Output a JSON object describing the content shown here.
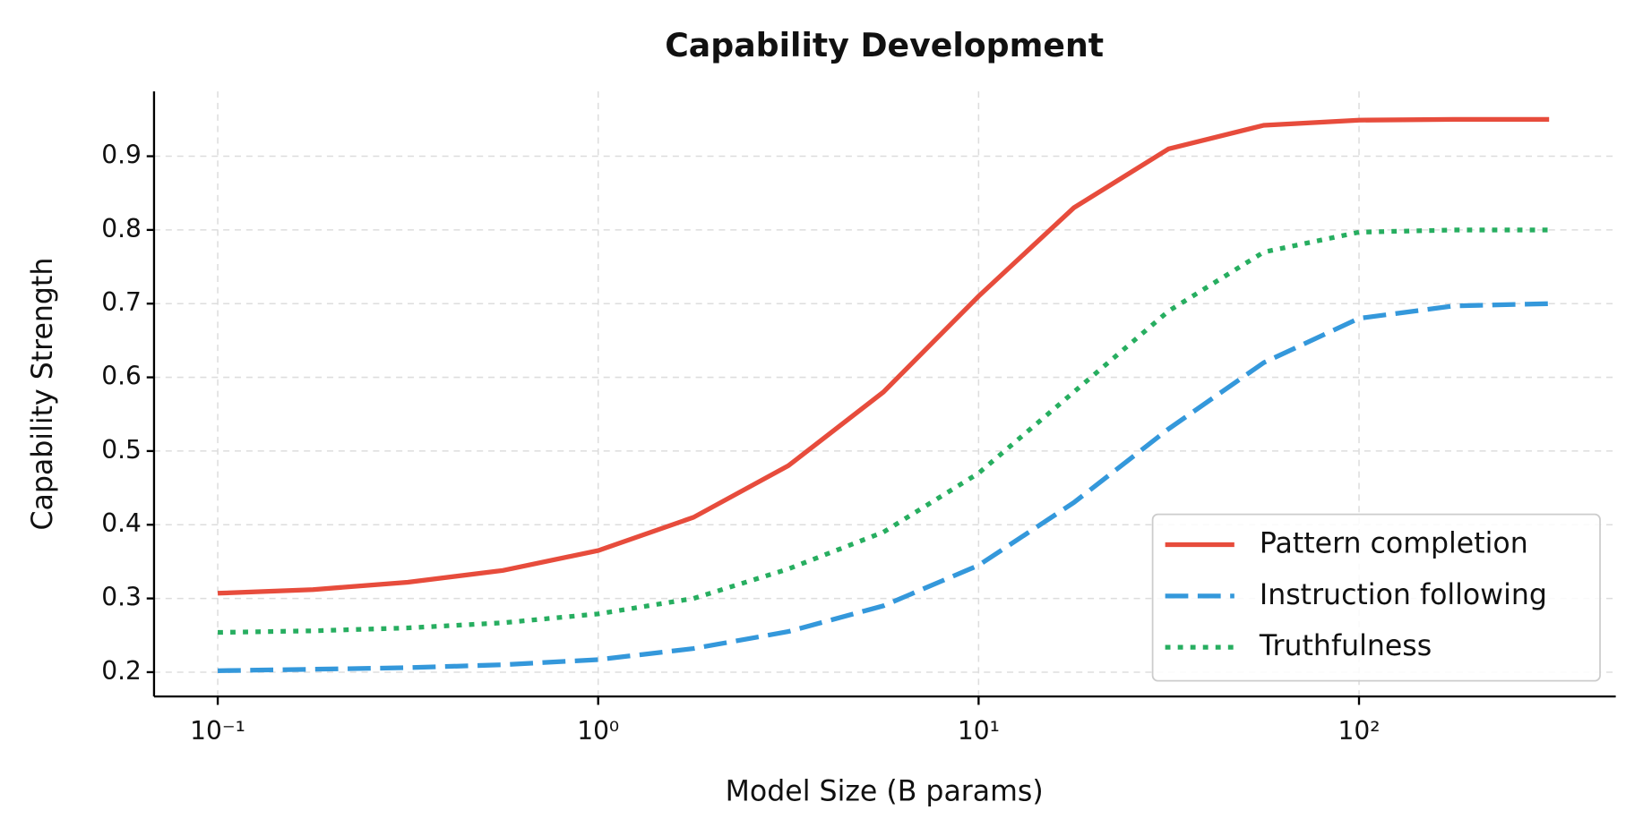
{
  "chart_data": {
    "type": "line",
    "title": "Capability Development",
    "x_label": "Model Size (B params)",
    "y_label": "Capability Strength",
    "x": [
      0.1,
      0.178,
      0.316,
      0.562,
      1,
      1.78,
      3.16,
      5.62,
      10,
      17.8,
      31.6,
      56.2,
      100,
      178,
      316
    ],
    "series": [
      {
        "name": "Pattern completion",
        "color": "#e74c3c",
        "style": "solid",
        "values": [
          0.307,
          0.312,
          0.322,
          0.338,
          0.365,
          0.41,
          0.48,
          0.58,
          0.71,
          0.83,
          0.91,
          0.942,
          0.949,
          0.95,
          0.95
        ]
      },
      {
        "name": "Instruction following",
        "color": "#3498db",
        "style": "dashed",
        "values": [
          0.202,
          0.204,
          0.206,
          0.21,
          0.217,
          0.232,
          0.255,
          0.29,
          0.345,
          0.43,
          0.53,
          0.62,
          0.68,
          0.697,
          0.7
        ]
      },
      {
        "name": "Truthfulness",
        "color": "#27ae60",
        "style": "dotted",
        "values": [
          0.254,
          0.256,
          0.26,
          0.267,
          0.279,
          0.3,
          0.34,
          0.39,
          0.47,
          0.58,
          0.69,
          0.77,
          0.797,
          0.8,
          0.8
        ]
      }
    ],
    "x_log": true,
    "xlim": [
      0.068,
      473
    ],
    "ylim": [
      0.167,
      0.988
    ],
    "xticks": [
      {
        "value": 0.1,
        "label": "10⁻¹"
      },
      {
        "value": 1,
        "label": "10⁰"
      },
      {
        "value": 10,
        "label": "10¹"
      },
      {
        "value": 100,
        "label": "10²"
      }
    ],
    "yticks": [
      0.2,
      0.3,
      0.4,
      0.5,
      0.6,
      0.7,
      0.8,
      0.9
    ],
    "grid": true,
    "legend": "lower right"
  }
}
